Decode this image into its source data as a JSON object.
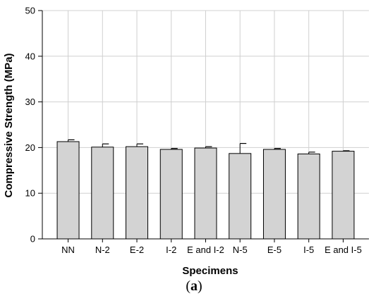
{
  "chart_data": {
    "type": "bar",
    "categories": [
      "NN",
      "N-2",
      "E-2",
      "I-2",
      "E and I-2",
      "N-5",
      "E-5",
      "I-5",
      "E and I-5"
    ],
    "values": [
      21.3,
      20.1,
      20.2,
      19.6,
      19.9,
      18.7,
      19.6,
      18.6,
      19.2
    ],
    "errors": [
      0.4,
      0.7,
      0.6,
      0.2,
      0.3,
      2.2,
      0.2,
      0.4,
      0.1
    ],
    "xlabel": "Specimens",
    "ylabel": "Compressive Strength (MPa)",
    "ylim": [
      0,
      50
    ],
    "yticks": [
      0,
      10,
      20,
      30,
      40,
      50
    ],
    "grid": true,
    "bar_color": "#d3d3d3",
    "grid_color": "#d0d0d0"
  },
  "caption": {
    "open": "(",
    "letter": "a",
    "close": ")"
  }
}
